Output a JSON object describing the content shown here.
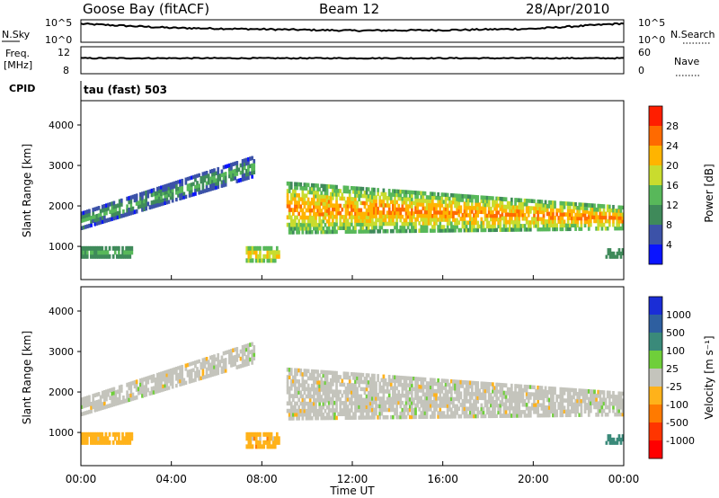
{
  "header": {
    "station": "Goose Bay (fitACF)",
    "beam": "Beam 12",
    "date": "28/Apr/2010"
  },
  "noise_panel": {
    "left_label": "N.Sky",
    "left_ticks": [
      "10^5",
      "10^0"
    ],
    "right_label": "N.Search",
    "right_ticks": [
      "10^5",
      "10^0"
    ]
  },
  "freq_panel": {
    "left_label_1": "Freq.",
    "left_label_2": "[MHz]",
    "left_ticks": [
      "12",
      "8"
    ],
    "right_label": "Nave",
    "right_ticks": [
      "60",
      "0"
    ]
  },
  "cpid": {
    "label": "CPID",
    "value": "tau (fast) 503"
  },
  "power_panel": {
    "ylabel": "Slant Range [km]",
    "yticks": [
      "4000",
      "3000",
      "2000",
      "1000"
    ],
    "colorbar_label": "Power [dB]",
    "colorbar_ticks": [
      "28",
      "24",
      "20",
      "16",
      "12",
      "8",
      "4"
    ],
    "colors": [
      "#0a14ff",
      "#3c52a8",
      "#3f8a5a",
      "#58b85a",
      "#c9dc2e",
      "#ffb400",
      "#ff6a00",
      "#ff1e00"
    ]
  },
  "velocity_panel": {
    "ylabel": "Slant Range [km]",
    "yticks": [
      "4000",
      "3000",
      "2000",
      "1000"
    ],
    "colorbar_label": "Velocity [m s⁻¹]",
    "colorbar_ticks": [
      "1000",
      "500",
      "100",
      "25",
      "-25",
      "-100",
      "-500",
      "-1000"
    ],
    "colors": [
      "#1a2dd6",
      "#2e5fa0",
      "#3a8a7a",
      "#6fcf3a",
      "#c4c4bc",
      "#ffb21a",
      "#ff7a00",
      "#ff3500",
      "#ff0000"
    ]
  },
  "xaxis": {
    "label": "Time UT",
    "ticks": [
      "00:00",
      "04:00",
      "08:00",
      "12:00",
      "16:00",
      "20:00",
      "00:00"
    ]
  },
  "chart_data": {
    "type": "heatmap",
    "title": "Goose Bay (fitACF)",
    "xlabel": "Time UT",
    "ylabel": "Slant Range [km]",
    "xlim": [
      0,
      24
    ],
    "ylim": [
      180,
      4600
    ],
    "noise_log_range": [
      0,
      5
    ],
    "freq_range_mhz": [
      8,
      12
    ],
    "nave_range": [
      0,
      60
    ],
    "noise_approx": [
      {
        "t": 0,
        "log": 4.1
      },
      {
        "t": 4,
        "log": 3.2
      },
      {
        "t": 8,
        "log": 2.9
      },
      {
        "t": 12,
        "log": 2.6
      },
      {
        "t": 16,
        "log": 2.7
      },
      {
        "t": 20,
        "log": 3.0
      },
      {
        "t": 24,
        "log": 4.2
      }
    ],
    "freq_mhz_approx": 10.3,
    "echo_regions": [
      {
        "name": "ramp",
        "t0": 0.0,
        "t1": 7.7,
        "r0_start": 1400,
        "r1_start": 1850,
        "r0_end": 2700,
        "r1_end": 3250,
        "power_db": [
          4,
          16
        ],
        "velocity_class": "-25..25"
      },
      {
        "name": "early-low",
        "t0": 0.0,
        "t1": 2.3,
        "r0_start": 700,
        "r1_start": 1000,
        "r0_end": 700,
        "r1_end": 1000,
        "power_db": [
          8,
          14
        ],
        "velocity_class": "-100..-25"
      },
      {
        "name": "main-band",
        "t0": 9.1,
        "t1": 24.0,
        "r0_start": 1300,
        "r1_start": 2600,
        "r0_end": 1400,
        "r1_end": 2000,
        "power_db": [
          12,
          28
        ],
        "velocity_class": "-25..25"
      },
      {
        "name": "morning-spot",
        "t0": 7.3,
        "t1": 8.8,
        "r0_start": 600,
        "r1_start": 1000,
        "r0_end": 600,
        "r1_end": 1000,
        "power_db": [
          12,
          24
        ],
        "velocity_class": "-100..-25"
      },
      {
        "name": "late-low",
        "t0": 23.2,
        "t1": 24.0,
        "r0_start": 700,
        "r1_start": 950,
        "r0_end": 700,
        "r1_end": 950,
        "power_db": [
          8,
          12
        ],
        "velocity_class": "100..500"
      }
    ]
  }
}
